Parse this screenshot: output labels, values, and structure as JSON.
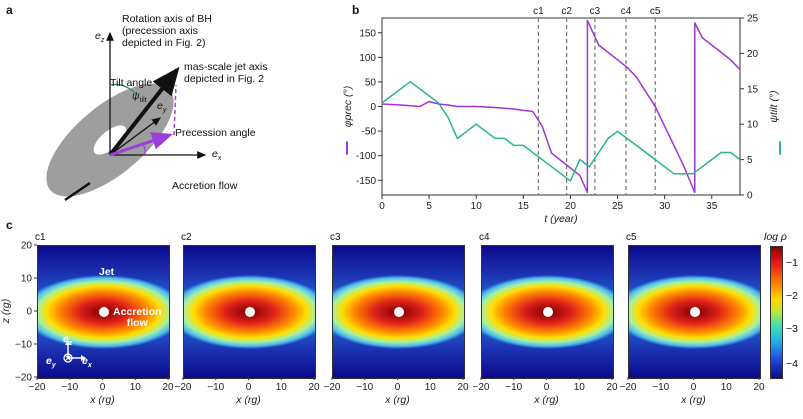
{
  "panel_a": {
    "letter": "a",
    "ez": "e",
    "ez_sub": "z",
    "ey": "e",
    "ey_sub": "y",
    "ex": "e",
    "ex_sub": "x",
    "rotation_axis": [
      "Rotation axis of BH",
      "(precession axis",
      "depicted in Fig. 2)"
    ],
    "jet_axis": [
      "mas-scale jet axis",
      "depicted in Fig. 2"
    ],
    "tilt_angle": "Tilt angle",
    "psi": "ψ",
    "psi_sub": "tilt",
    "precession_angle": "Precession angle",
    "accretion_flow": "Accretion flow"
  },
  "panel_b": {
    "letter": "b",
    "markers": [
      "c1",
      "c2",
      "c3",
      "c4",
      "c5"
    ],
    "xlabel": "t (year)",
    "ylabel_left": "φprec (°)",
    "ylabel_right": "ψtilt (°)",
    "colors": {
      "prec": "#a135d6",
      "tilt": "#2bb58a"
    },
    "chart_data": {
      "type": "line",
      "xlim": [
        0,
        38
      ],
      "ylim_left": [
        -180,
        180
      ],
      "ylim_right": [
        0,
        25
      ],
      "xticks": [
        0,
        5,
        10,
        15,
        20,
        25,
        30,
        35
      ],
      "yticks_left": [
        -150,
        -100,
        -50,
        0,
        50,
        100,
        150
      ],
      "yticks_right": [
        0,
        5,
        10,
        15,
        20,
        25
      ],
      "marker_times": [
        16.6,
        19.6,
        22.6,
        25.9,
        29.0
      ],
      "series": [
        {
          "name": "φprec",
          "axis": "left",
          "x": [
            0,
            2,
            4,
            5,
            6,
            7,
            8,
            10,
            12,
            14,
            15,
            16,
            17,
            18,
            19,
            20,
            21,
            21.8,
            21.8,
            23,
            24,
            25,
            26,
            27,
            28,
            29,
            30,
            31,
            32,
            33.2,
            33.2,
            34,
            35,
            36,
            37,
            38
          ],
          "y": [
            5,
            3,
            0,
            10,
            5,
            3,
            0,
            0,
            -2,
            -5,
            -8,
            -10,
            -40,
            -95,
            -110,
            -125,
            -140,
            -175,
            175,
            125,
            110,
            95,
            80,
            60,
            30,
            0,
            -40,
            -80,
            -120,
            -175,
            170,
            140,
            125,
            110,
            95,
            75
          ]
        },
        {
          "name": "ψtilt",
          "axis": "right",
          "x": [
            0,
            1,
            2,
            3,
            4,
            5,
            6,
            7,
            8,
            9,
            10,
            11,
            12,
            13,
            14,
            15,
            16,
            17,
            18,
            19,
            20,
            21,
            22,
            23,
            24,
            25,
            26,
            27,
            28,
            29,
            30,
            31,
            32,
            33,
            34,
            35,
            36,
            37,
            38
          ],
          "y": [
            13,
            14,
            15,
            16,
            15,
            14,
            13,
            11,
            8,
            9,
            10,
            9,
            8,
            8,
            7,
            7,
            6,
            5,
            4,
            3,
            2,
            5,
            4,
            6,
            8,
            9,
            8,
            7,
            6,
            5,
            4,
            3,
            3,
            3,
            4,
            5,
            6,
            6,
            5
          ]
        }
      ]
    }
  },
  "panel_c": {
    "letter": "c",
    "snapshots": [
      "c1",
      "c2",
      "c3",
      "c4",
      "c5"
    ],
    "xticks": [
      "−20",
      "−10",
      "0",
      "10",
      "20"
    ],
    "yticks": [
      "20",
      "10",
      "0",
      "−10",
      "−20"
    ],
    "xlabel": "x (rg)",
    "ylabel": "z (rg)",
    "jet": "Jet",
    "accretion": "Accretion",
    "flow": "flow",
    "ez": "e",
    "ez_sub": "z",
    "ex": "e",
    "ex_sub": "x",
    "ey": "e",
    "ey_sub": "y",
    "colorbar_title": "log ρ",
    "colorbar_ticks": [
      "−1",
      "−2",
      "−3",
      "−4"
    ]
  }
}
